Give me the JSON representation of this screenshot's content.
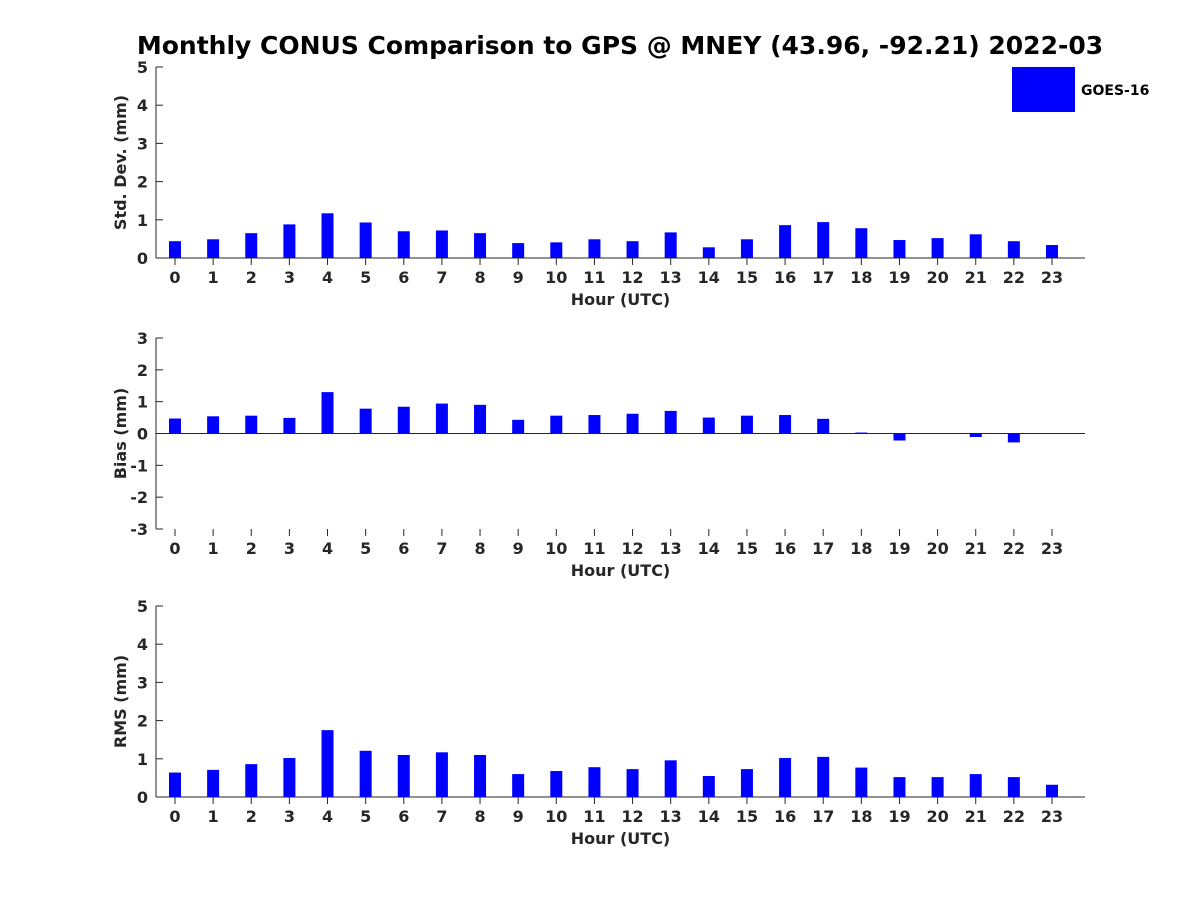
{
  "title": "Monthly CONUS Comparison to GPS @ MNEY (43.96, -92.21) 2022-03",
  "bar_color": "#0000ff",
  "legend": {
    "label": "GOES-16"
  },
  "chart_data": [
    {
      "type": "bar",
      "categories": [
        "0",
        "1",
        "2",
        "3",
        "4",
        "5",
        "6",
        "7",
        "8",
        "9",
        "10",
        "11",
        "12",
        "13",
        "14",
        "15",
        "16",
        "17",
        "18",
        "19",
        "20",
        "21",
        "22",
        "23"
      ],
      "series": [
        {
          "name": "GOES-16",
          "values": [
            0.44,
            0.49,
            0.65,
            0.88,
            1.17,
            0.93,
            0.7,
            0.72,
            0.65,
            0.39,
            0.41,
            0.49,
            0.44,
            0.67,
            0.28,
            0.49,
            0.86,
            0.94,
            0.78,
            0.47,
            0.52,
            0.62,
            0.44,
            0.34
          ]
        }
      ],
      "xlabel": "Hour (UTC)",
      "ylabel": "Std. Dev. (mm)",
      "ylim": [
        0,
        5
      ],
      "yticks": [
        "0",
        "1",
        "2",
        "3",
        "4",
        "5"
      ],
      "grid": false
    },
    {
      "type": "bar",
      "categories": [
        "0",
        "1",
        "2",
        "3",
        "4",
        "5",
        "6",
        "7",
        "8",
        "9",
        "10",
        "11",
        "12",
        "13",
        "14",
        "15",
        "16",
        "17",
        "18",
        "19",
        "20",
        "21",
        "22",
        "23"
      ],
      "series": [
        {
          "name": "GOES-16",
          "values": [
            0.47,
            0.54,
            0.56,
            0.49,
            1.3,
            0.78,
            0.84,
            0.94,
            0.9,
            0.43,
            0.56,
            0.58,
            0.62,
            0.71,
            0.5,
            0.56,
            0.58,
            0.46,
            0.03,
            -0.22,
            0.0,
            -0.11,
            -0.28,
            0.0
          ]
        }
      ],
      "xlabel": "Hour (UTC)",
      "ylabel": "Bias (mm)",
      "ylim": [
        -3,
        3
      ],
      "yticks": [
        "-3",
        "-2",
        "-1",
        "0",
        "1",
        "2",
        "3"
      ],
      "grid": false
    },
    {
      "type": "bar",
      "categories": [
        "0",
        "1",
        "2",
        "3",
        "4",
        "5",
        "6",
        "7",
        "8",
        "9",
        "10",
        "11",
        "12",
        "13",
        "14",
        "15",
        "16",
        "17",
        "18",
        "19",
        "20",
        "21",
        "22",
        "23"
      ],
      "series": [
        {
          "name": "GOES-16",
          "values": [
            0.64,
            0.71,
            0.86,
            1.02,
            1.75,
            1.21,
            1.1,
            1.17,
            1.1,
            0.6,
            0.68,
            0.78,
            0.73,
            0.96,
            0.55,
            0.73,
            1.02,
            1.05,
            0.77,
            0.52,
            0.52,
            0.6,
            0.52,
            0.32
          ]
        }
      ],
      "xlabel": "Hour (UTC)",
      "ylabel": "RMS (mm)",
      "ylim": [
        0,
        5
      ],
      "yticks": [
        "0",
        "1",
        "2",
        "3",
        "4",
        "5"
      ],
      "grid": false
    }
  ]
}
